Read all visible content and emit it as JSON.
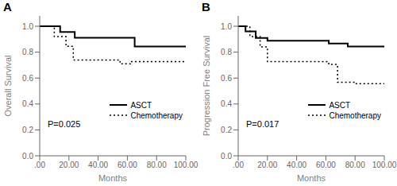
{
  "chart_data": [
    {
      "type": "step",
      "title": "A",
      "x_label": "Months",
      "y_label": "Overall Survival",
      "annotation": "P=0.025",
      "xlim": [
        0,
        100
      ],
      "ylim": [
        0.0,
        1.08
      ],
      "xticks": [
        {
          "value": 0,
          "label": ".00"
        },
        {
          "value": 20,
          "label": "20.00"
        },
        {
          "value": 40,
          "label": "40.00"
        },
        {
          "value": 60,
          "label": "60.00"
        },
        {
          "value": 80,
          "label": "80.00"
        },
        {
          "value": 100,
          "label": "100.00"
        }
      ],
      "yticks": [
        {
          "value": 0.0,
          "label": "0.0"
        },
        0.2,
        0.4,
        0.6,
        0.8,
        {
          "value": 1.0,
          "label": "1.0"
        }
      ],
      "grid": false,
      "legend": "lower right",
      "series": [
        {
          "name": "ASCT",
          "color": "#000000",
          "line_style": "solid",
          "x": [
            0,
            14,
            14,
            24,
            24,
            65,
            65,
            83,
            83,
            100
          ],
          "values": [
            1.0,
            1.0,
            0.955,
            0.955,
            0.911,
            0.911,
            0.844,
            0.844,
            0.844,
            0.844
          ]
        },
        {
          "name": "Chemotherapy",
          "color": "#000000",
          "line_style": "dotted",
          "x": [
            0,
            10,
            10,
            18,
            18,
            23,
            23,
            55,
            55,
            62,
            62,
            100
          ],
          "values": [
            1.0,
            1.0,
            0.92,
            0.92,
            0.845,
            0.845,
            0.74,
            0.74,
            0.71,
            0.71,
            0.727,
            0.727
          ]
        }
      ]
    },
    {
      "type": "step",
      "title": "B",
      "x_label": "Months",
      "y_label": "Progression Free Survival",
      "annotation": "P=0.017",
      "xlim": [
        0,
        100
      ],
      "ylim": [
        0.0,
        1.08
      ],
      "xticks": [
        {
          "value": 0,
          "label": ".00"
        },
        {
          "value": 20,
          "label": "20.00"
        },
        {
          "value": 40,
          "label": "40.00"
        },
        {
          "value": 60,
          "label": "60.00"
        },
        {
          "value": 80,
          "label": "80.00"
        },
        {
          "value": 100,
          "label": "100.00"
        }
      ],
      "yticks": [
        {
          "value": 0.0,
          "label": "0.0"
        },
        0.2,
        0.4,
        0.6,
        0.8,
        {
          "value": 1.0,
          "label": "1.0"
        }
      ],
      "grid": false,
      "legend": "lower right",
      "series": [
        {
          "name": "ASCT",
          "color": "#000000",
          "line_style": "solid",
          "x": [
            0,
            5,
            5,
            12,
            12,
            20,
            20,
            62,
            62,
            75,
            75,
            83,
            83,
            100
          ],
          "values": [
            1.0,
            1.0,
            0.96,
            0.96,
            0.91,
            0.91,
            0.889,
            0.889,
            0.866,
            0.866,
            0.844,
            0.844,
            0.844,
            0.844
          ]
        },
        {
          "name": "Chemotherapy",
          "color": "#000000",
          "line_style": "dotted",
          "x": [
            0,
            8,
            8,
            15,
            15,
            20,
            20,
            62,
            62,
            68,
            68,
            80,
            80,
            100
          ],
          "values": [
            1.0,
            1.0,
            0.92,
            0.92,
            0.84,
            0.84,
            0.727,
            0.727,
            0.705,
            0.705,
            0.568,
            0.568,
            0.557,
            0.557
          ]
        }
      ]
    }
  ]
}
